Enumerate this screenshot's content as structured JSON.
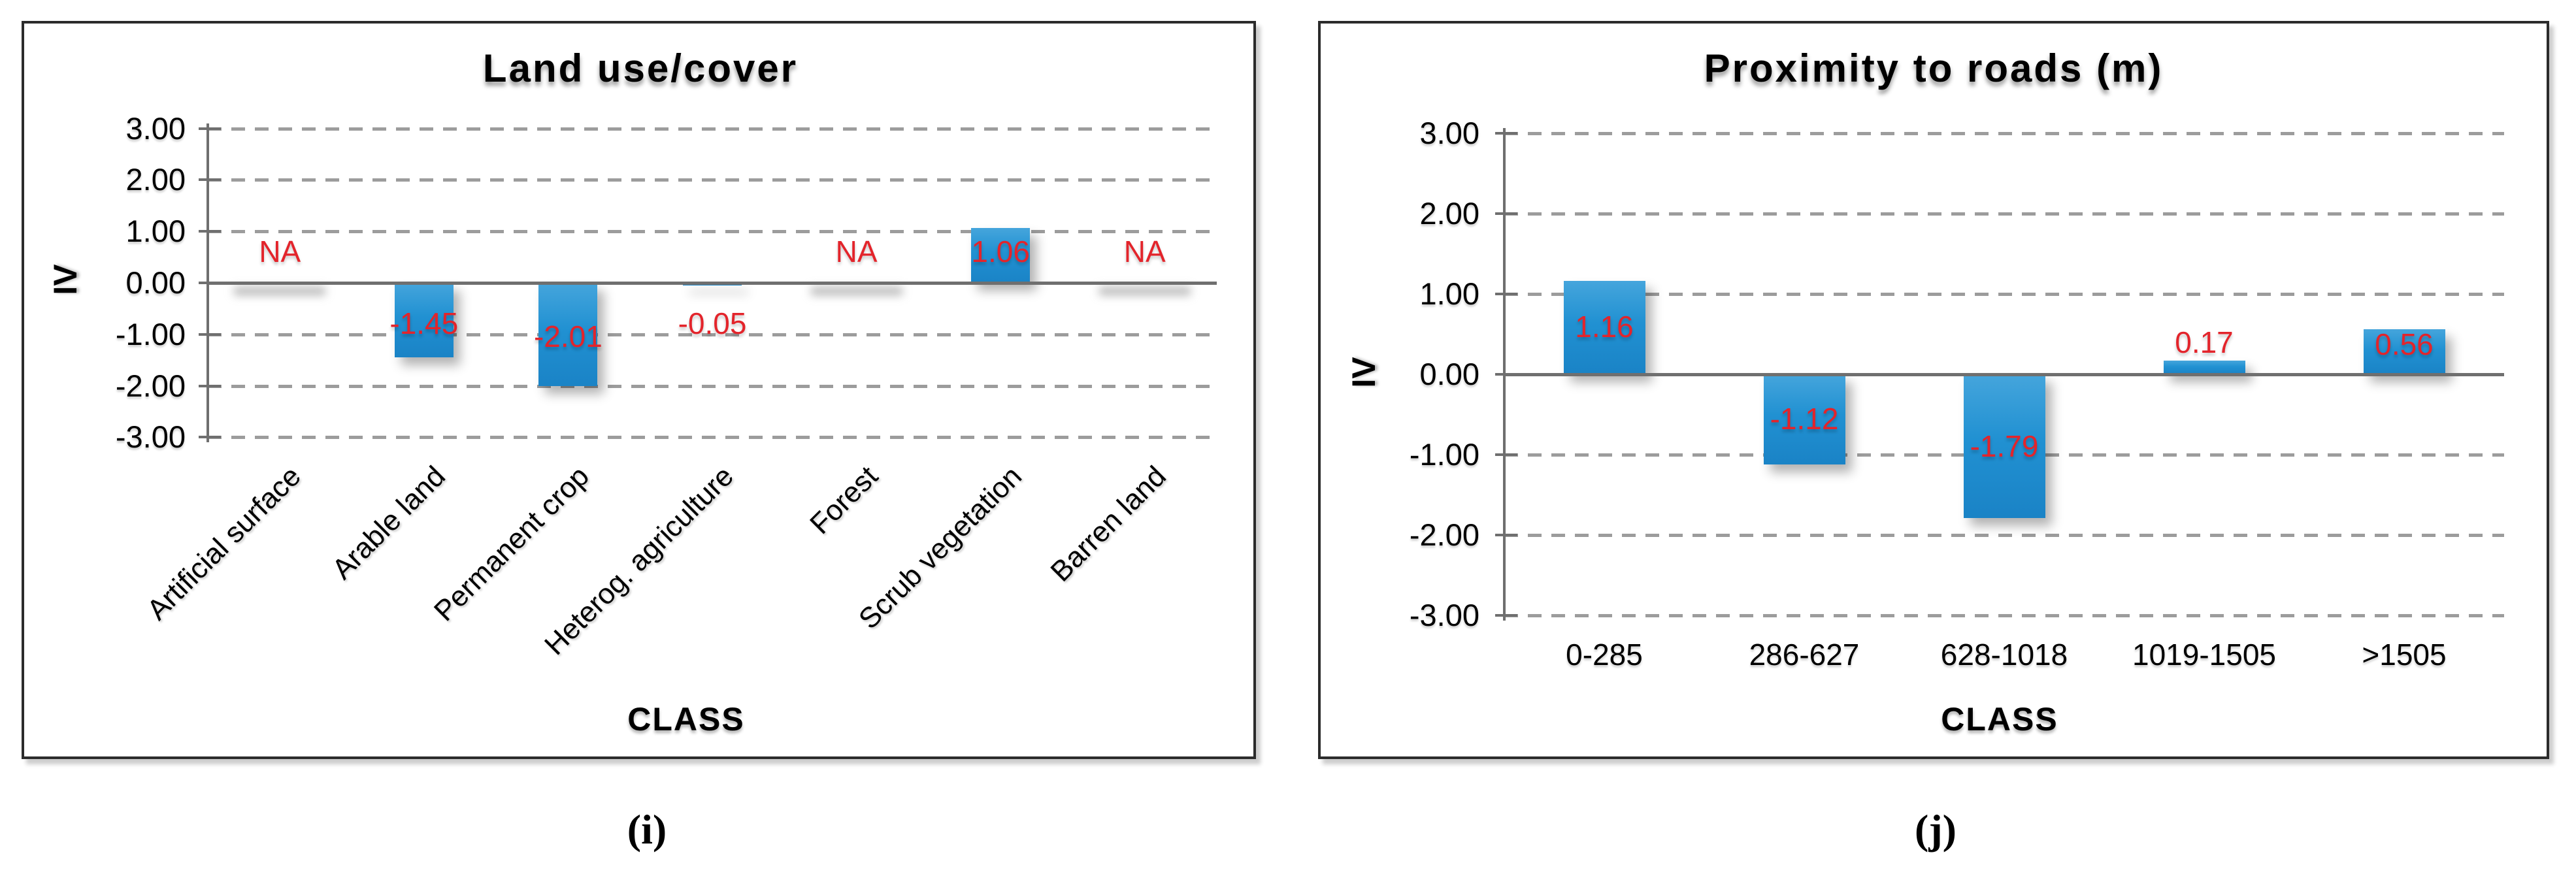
{
  "colors": {
    "bar_gradient_top": "#45a5dc",
    "bar_gradient_bottom": "#1a83c6",
    "value_label_red": "#e3242b",
    "gridline_gray": "#9c9c9c",
    "axis_gray": "#6f6f6f",
    "panel_border": "#2b2b2b",
    "text_black": "#000000",
    "background": "#ffffff"
  },
  "chart_data": [
    {
      "type": "bar",
      "caption": "(i)",
      "title": "Land use/cover",
      "xlabel": "CLASS",
      "ylabel": "IV",
      "categories": [
        "Artificial surface",
        "Arable land",
        "Permanent crop",
        "Heterog. agriculture",
        "Forest",
        "Scrub vegetation",
        "Barren land"
      ],
      "values": [
        null,
        -1.45,
        -2.01,
        -0.05,
        null,
        1.06,
        null
      ],
      "value_labels": [
        "NA",
        "-1.45",
        "-2.01",
        "-0.05",
        "NA",
        "1.06",
        "NA"
      ],
      "y_tick_labels": [
        "3.00",
        "2.00",
        "1.00",
        "0.00",
        "-1.00",
        "-2.00",
        "-3.00"
      ],
      "ylim": [
        -3,
        3
      ],
      "y_tick_step": 1,
      "gridlines": "horizontal-dashed",
      "legend": "none",
      "na_label": "NA"
    },
    {
      "type": "bar",
      "caption": "(j)",
      "title": "Proximity to roads (m)",
      "xlabel": "CLASS",
      "ylabel": "IV",
      "categories": [
        "0-285",
        "286-627",
        "628-1018",
        "1019-1505",
        ">1505"
      ],
      "values": [
        1.16,
        -1.12,
        -1.79,
        0.17,
        0.56
      ],
      "value_labels": [
        "1.16",
        "-1.12",
        "-1.79",
        "0.17",
        "0.56"
      ],
      "y_tick_labels": [
        "3.00",
        "2.00",
        "1.00",
        "0.00",
        "-1.00",
        "-2.00",
        "-3.00"
      ],
      "ylim": [
        -3,
        3
      ],
      "y_tick_step": 1,
      "gridlines": "horizontal-dashed",
      "legend": "none",
      "na_label": "NA"
    }
  ]
}
